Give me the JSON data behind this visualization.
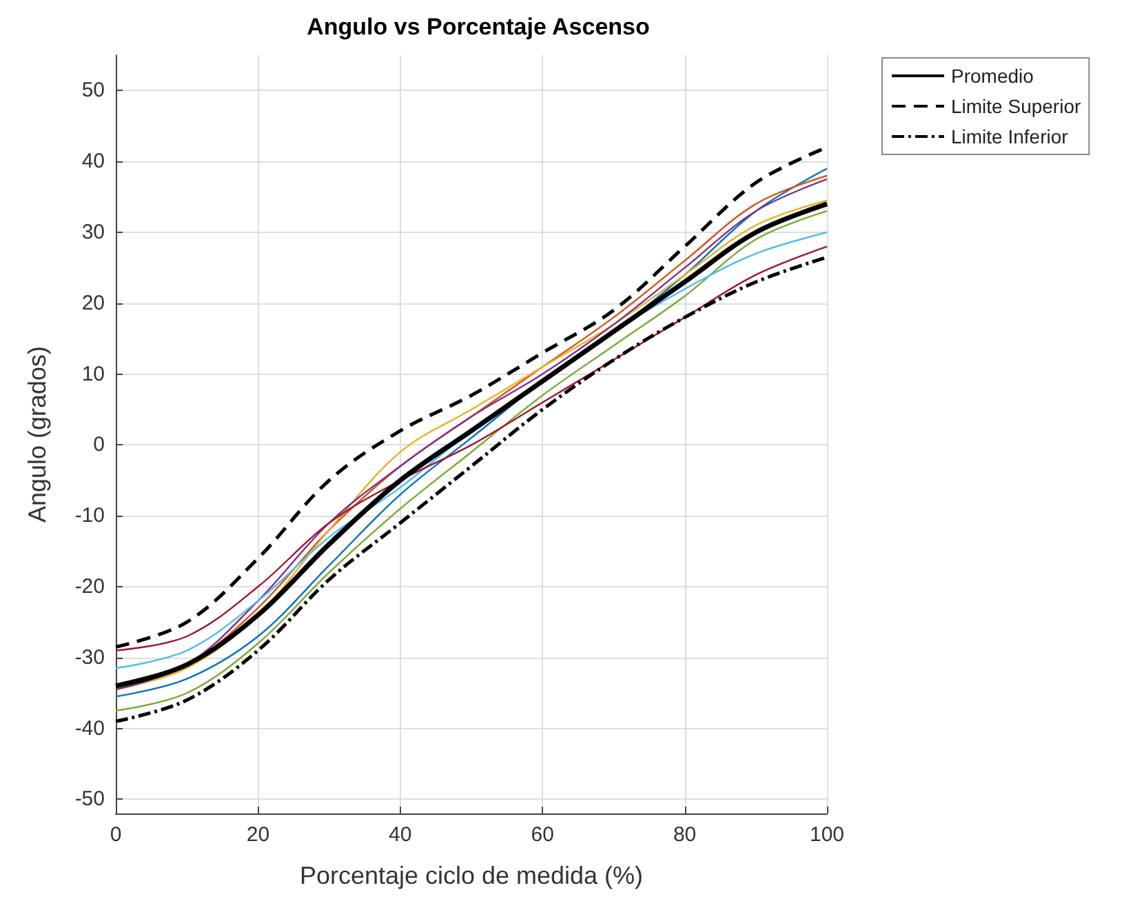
{
  "chart_data": {
    "type": "line",
    "title": "Angulo vs Porcentaje Ascenso",
    "xlabel": "Porcentaje ciclo de medida (%)",
    "ylabel": "Angulo (grados)",
    "x": [
      0,
      10,
      20,
      30,
      40,
      50,
      60,
      70,
      80,
      90,
      100
    ],
    "xlim": [
      0,
      100
    ],
    "xticks": [
      0,
      20,
      40,
      60,
      80,
      100
    ],
    "ylim": [
      -52,
      55
    ],
    "yticks": [
      -50,
      -40,
      -30,
      -20,
      -10,
      0,
      10,
      20,
      30,
      40,
      50
    ],
    "grid": true,
    "legend": "top right",
    "marker": "none",
    "series": [
      {
        "color": "#0072bd",
        "values": [
          -35.5,
          -33,
          -27,
          -17,
          -7,
          1,
          9,
          16,
          24,
          33,
          39
        ]
      },
      {
        "color": "#d95319",
        "values": [
          -34,
          -31,
          -23,
          -12,
          -3,
          4,
          11,
          18,
          26,
          34,
          38
        ]
      },
      {
        "color": "#edb120",
        "values": [
          -34.5,
          -31.5,
          -24,
          -12,
          -1,
          5,
          11,
          17,
          24,
          31,
          34.5
        ]
      },
      {
        "color": "#7e2f8e",
        "values": [
          -34.5,
          -31,
          -22,
          -11,
          -3,
          4,
          10,
          17,
          25,
          33,
          37.5
        ]
      },
      {
        "color": "#77ac30",
        "values": [
          -37.5,
          -35,
          -28,
          -18,
          -9,
          -1,
          7,
          14,
          21,
          29,
          33
        ]
      },
      {
        "color": "#4dbeee",
        "values": [
          -31.5,
          -29,
          -22,
          -13,
          -6,
          2,
          9,
          16,
          22,
          27,
          30
        ]
      },
      {
        "color": "#a2142f",
        "values": [
          -29,
          -27,
          -20,
          -11,
          -5,
          0,
          6,
          12,
          18,
          24,
          28
        ]
      },
      {
        "name": "Promedio",
        "color": "#000000",
        "line_style": "solid",
        "values": [
          -34,
          -31,
          -24,
          -14,
          -5,
          2,
          9,
          16,
          23,
          30,
          34
        ]
      },
      {
        "name": "Limite Superior",
        "color": "#000000",
        "line_style": "dashed",
        "values": [
          -28.5,
          -25,
          -16,
          -5,
          2,
          7,
          13,
          19,
          28,
          37,
          42
        ]
      },
      {
        "name": "Limite Inferior",
        "color": "#000000",
        "line_style": "dashdot",
        "values": [
          -39,
          -36,
          -29,
          -19,
          -11,
          -3,
          5,
          12,
          18,
          23,
          26.5
        ]
      }
    ]
  }
}
